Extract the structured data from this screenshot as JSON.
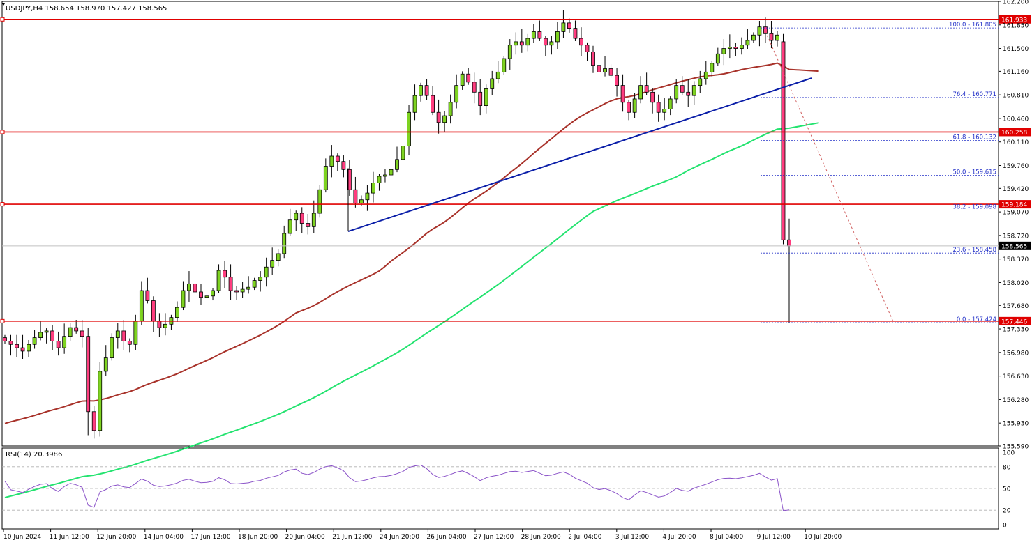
{
  "header": {
    "symbol_info": "USDJPY,H4  158.654 158.970 157.427 158.565"
  },
  "rsi_panel": {
    "label": "RSI(14) 20.3986",
    "value": 20.3986,
    "levels": [
      80,
      50,
      20
    ],
    "axis_ticks": [
      "100",
      "80",
      "50",
      "20",
      "0"
    ]
  },
  "colors": {
    "bull_candle": "#7ed321",
    "bear_candle": "#ff3d7f",
    "support_resistance": "#e00000",
    "trendline": "#0a1ea8",
    "ma_slow": "#a8322a",
    "ma_long": "#23e36f",
    "fib_line": "#2432c8",
    "rsi_line": "#8a52c8",
    "projection": "#d06060"
  },
  "chart_data": {
    "type": "candlestick",
    "symbol": "USDJPY",
    "timeframe": "H4",
    "ohlc_last": {
      "open": 158.654,
      "high": 158.97,
      "low": 157.427,
      "close": 158.565
    },
    "ylim": [
      155.59,
      162.2
    ],
    "y_ticks": [
      "162.200",
      "161.850",
      "161.500",
      "161.160",
      "160.810",
      "160.460",
      "160.110",
      "159.760",
      "159.420",
      "159.070",
      "158.720",
      "158.370",
      "158.020",
      "157.680",
      "157.330",
      "156.980",
      "156.630",
      "156.280",
      "155.930",
      "155.590"
    ],
    "x_ticks": [
      "10 Jun 2024",
      "11 Jun 12:00",
      "12 Jun 20:00",
      "14 Jun 04:00",
      "17 Jun 12:00",
      "18 Jun 20:00",
      "20 Jun 04:00",
      "21 Jun 12:00",
      "24 Jun 20:00",
      "26 Jun 04:00",
      "27 Jun 12:00",
      "28 Jun 20:00",
      "2 Jul 04:00",
      "3 Jul 12:00",
      "4 Jul 20:00",
      "8 Jul 04:00",
      "9 Jul 12:00",
      "10 Jul 20:00"
    ],
    "horizontal_levels": [
      {
        "value": 161.933,
        "label": "161.933"
      },
      {
        "value": 160.258,
        "label": "160.258"
      },
      {
        "value": 159.184,
        "label": "159.184"
      },
      {
        "value": 157.446,
        "label": "157.446"
      }
    ],
    "current_price": {
      "value": 158.565,
      "label": "158.565"
    },
    "fibonacci": [
      {
        "label": "100.0 - 161.805",
        "value": 161.805
      },
      {
        "label": "76.4 - 160.771",
        "value": 160.771
      },
      {
        "label": "61.8 - 160.132",
        "value": 160.132
      },
      {
        "label": "50.0 - 159.615",
        "value": 159.615
      },
      {
        "label": "38.2 - 159.098",
        "value": 159.098
      },
      {
        "label": "23.6 - 158.458",
        "value": 158.458
      },
      {
        "label": "0.0 - 157.424",
        "value": 157.424
      }
    ],
    "closes": [
      157.15,
      157.1,
      157.05,
      157.0,
      157.1,
      157.2,
      157.28,
      157.3,
      157.15,
      157.05,
      157.22,
      157.35,
      157.3,
      157.22,
      156.1,
      155.82,
      156.7,
      156.9,
      157.2,
      157.3,
      157.15,
      157.1,
      157.45,
      157.9,
      157.75,
      157.45,
      157.35,
      157.4,
      157.5,
      157.65,
      157.9,
      158.0,
      157.88,
      157.8,
      157.82,
      157.9,
      158.2,
      158.1,
      157.9,
      157.88,
      157.92,
      157.95,
      158.05,
      158.1,
      158.25,
      158.35,
      158.45,
      158.75,
      158.95,
      159.05,
      158.9,
      158.85,
      159.05,
      159.4,
      159.75,
      159.9,
      159.82,
      159.7,
      159.4,
      159.2,
      159.25,
      159.35,
      159.5,
      159.6,
      159.62,
      159.7,
      159.85,
      160.05,
      160.55,
      160.8,
      160.95,
      160.8,
      160.55,
      160.4,
      160.5,
      160.7,
      160.95,
      161.12,
      161.0,
      160.85,
      160.65,
      160.9,
      161.05,
      161.15,
      161.35,
      161.55,
      161.6,
      161.55,
      161.65,
      161.75,
      161.65,
      161.55,
      161.6,
      161.75,
      161.88,
      161.8,
      161.65,
      161.55,
      161.45,
      161.25,
      161.15,
      161.2,
      161.1,
      160.95,
      160.7,
      160.55,
      160.75,
      160.95,
      160.85,
      160.7,
      160.55,
      160.6,
      160.75,
      160.95,
      160.85,
      160.8,
      160.95,
      161.05,
      161.15,
      161.28,
      161.42,
      161.5,
      161.52,
      161.5,
      161.55,
      161.62,
      161.7,
      161.82,
      161.72,
      161.62,
      161.7,
      158.654,
      158.565
    ]
  }
}
